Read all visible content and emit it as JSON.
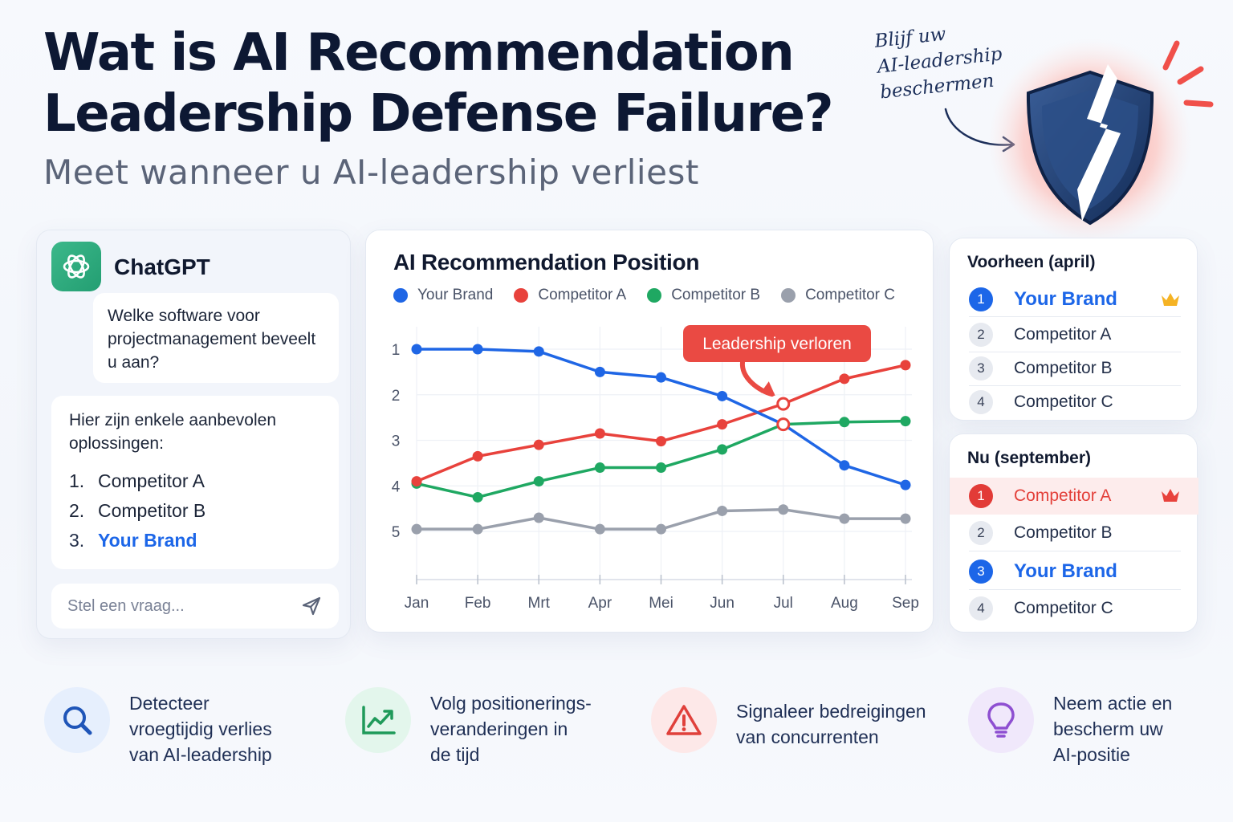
{
  "header": {
    "title_line1": "Wat is AI Recommendation",
    "title_line2": "Leadership Defense Failure?",
    "subtitle": "Meet wanneer u AI-leadership verliest",
    "handnote": [
      "Blijf uw",
      "AI-leadership",
      "beschermen"
    ]
  },
  "chat": {
    "app_name": "ChatGPT",
    "user_message": "Welke software voor projectmanagement beveelt u aan?",
    "bot_intro": "Hier zijn enkele aanbevolen oplossingen:",
    "bot_list": [
      {
        "num": "1.",
        "label": "Competitor A"
      },
      {
        "num": "2.",
        "label": "Competitor B"
      },
      {
        "num": "3.",
        "label": "Your Brand"
      }
    ],
    "input_placeholder": "Stel een vraag..."
  },
  "chart_data": {
    "type": "line",
    "title": "AI Recommendation Position",
    "x": [
      "Jan",
      "Feb",
      "Mrt",
      "Apr",
      "Mei",
      "Jun",
      "Jul",
      "Aug",
      "Sep"
    ],
    "yticks": [
      "1",
      "2",
      "3",
      "4",
      "5"
    ],
    "ylim": [
      1,
      5
    ],
    "y_inverted": true,
    "grid": true,
    "legend_position": "top",
    "series": [
      {
        "name": "Your Brand",
        "color": "#1f66e5",
        "values": [
          1.0,
          1.0,
          1.05,
          1.5,
          1.62,
          2.03,
          2.65,
          3.55,
          3.98
        ]
      },
      {
        "name": "Competitor A",
        "color": "#e8423c",
        "values": [
          3.9,
          3.35,
          3.1,
          2.85,
          3.02,
          2.65,
          2.2,
          1.65,
          1.35
        ]
      },
      {
        "name": "Competitor B",
        "color": "#1fa862",
        "values": [
          3.95,
          4.25,
          3.9,
          3.6,
          3.6,
          3.2,
          2.65,
          2.6,
          2.58
        ]
      },
      {
        "name": "Competitor C",
        "color": "#9aa0ac",
        "values": [
          4.95,
          4.95,
          4.7,
          4.95,
          4.95,
          4.55,
          4.52,
          4.72,
          4.72
        ]
      }
    ],
    "annotation": {
      "text": "Leadership verloren",
      "month": "Jul"
    }
  },
  "rankings": {
    "before": {
      "title": "Voorheen (april)",
      "rows": [
        {
          "rank": "1",
          "name": "Your Brand",
          "style": "brand",
          "crown": true
        },
        {
          "rank": "2",
          "name": "Competitor A",
          "style": "normal",
          "crown": false
        },
        {
          "rank": "3",
          "name": "Competitor B",
          "style": "normal",
          "crown": false
        },
        {
          "rank": "4",
          "name": "Competitor C",
          "style": "normal",
          "crown": false
        }
      ]
    },
    "now": {
      "title": "Nu (september)",
      "rows": [
        {
          "rank": "1",
          "name": "Competitor A",
          "style": "lost",
          "crown": true
        },
        {
          "rank": "2",
          "name": "Competitor B",
          "style": "normal",
          "crown": false
        },
        {
          "rank": "3",
          "name": "Your Brand",
          "style": "brand",
          "crown": false
        },
        {
          "rank": "4",
          "name": "Competitor C",
          "style": "normal",
          "crown": false
        }
      ]
    }
  },
  "features": [
    {
      "text": [
        "Detecteer",
        "vroegtijdig verlies",
        "van AI-leadership"
      ],
      "icon": "search-icon",
      "bg": "#e6effd",
      "fg": "#1f55b8"
    },
    {
      "text": [
        "Volg positionerings-",
        "veranderingen in",
        "de tijd"
      ],
      "icon": "trend-chart-icon",
      "bg": "#e3f6ec",
      "fg": "#1f9a5a"
    },
    {
      "text": [
        "Signaleer bedreigingen",
        "van concurrenten"
      ],
      "icon": "warning-icon",
      "bg": "#fde8e8",
      "fg": "#e0403b"
    },
    {
      "text": [
        "Neem actie en",
        "bescherm uw",
        "AI-positie"
      ],
      "icon": "lightbulb-icon",
      "bg": "#f0e8fb",
      "fg": "#8e4fd1"
    }
  ]
}
